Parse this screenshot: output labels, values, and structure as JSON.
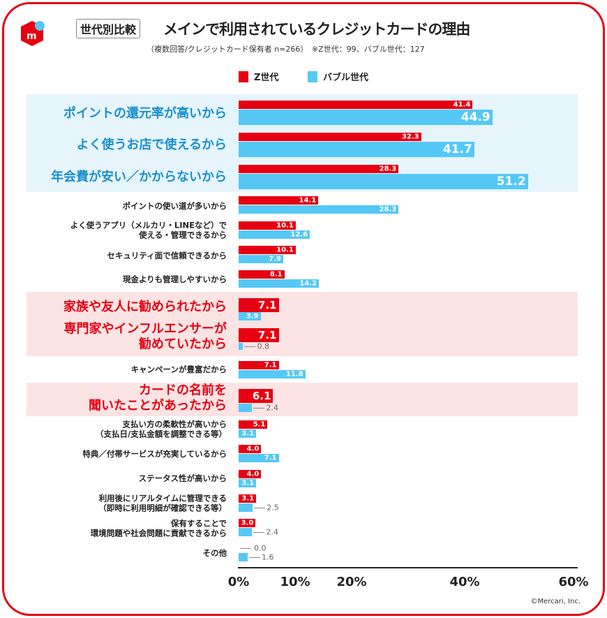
{
  "header": {
    "tag": "世代別比較",
    "title": "メインで利用されているクレジットカードの理由",
    "subtitle": "（複数回答/クレジットカード保有者 n=266）　※Z世代：99、バブル世代：127",
    "logo_text": "m"
  },
  "copyright": "©Mercari, Inc.",
  "colors": {
    "z": "#e60012",
    "bubble": "#55c8f5",
    "highlight_blue": "#e6f5fc",
    "highlight_pink": "#fce4e4"
  },
  "chart_data": {
    "type": "bar",
    "orientation": "horizontal",
    "title": "メインで利用されているクレジットカードの理由",
    "xlabel": "",
    "ylabel": "",
    "xlim": [
      0,
      60
    ],
    "ticks": [
      "0%",
      "10%",
      "20%",
      "40%",
      "60%"
    ],
    "tick_values": [
      0,
      10,
      20,
      40,
      60
    ],
    "legend": {
      "placement": "top-center",
      "entries": [
        "Z世代",
        "バブル世代"
      ]
    },
    "categories": [
      "ポイントの還元率が高いから",
      "よく使うお店で使えるから",
      "年会費が安い／かからないから",
      "ポイントの使い道が多いから",
      "よく使うアプリ（メルカリ・LINEなど）で\n使える・管理できるから",
      "セキュリティ面で信頼できるから",
      "現金よりも管理しやすいから",
      "家族や友人に勧められたから",
      "専門家やインフルエンサーが\n勧めていたから",
      "キャンペーンが豊富だから",
      "カードの名前を\n聞いたことがあったから",
      "支払い方の柔軟性が高いから\n（支払日/支払金額を調整できる等）",
      "特典／付帯サービスが充実しているから",
      "ステータス性が高いから",
      "利用後にリアルタイムに管理できる\n（即時に利用明細が確認できる等）",
      "保有することで\n環境問題や社会問題に貢献できるから",
      "その他"
    ],
    "series": [
      {
        "name": "Z世代",
        "values": [
          41.4,
          32.3,
          28.3,
          14.1,
          10.1,
          10.1,
          8.1,
          7.1,
          7.1,
          7.1,
          6.1,
          5.1,
          4.0,
          4.0,
          3.1,
          3.0,
          0.0
        ]
      },
      {
        "name": "バブル世代",
        "values": [
          44.9,
          41.7,
          51.2,
          28.3,
          12.6,
          7.9,
          14.2,
          3.9,
          0.8,
          11.8,
          2.4,
          3.1,
          7.1,
          3.1,
          2.5,
          2.4,
          1.6
        ]
      }
    ]
  }
}
